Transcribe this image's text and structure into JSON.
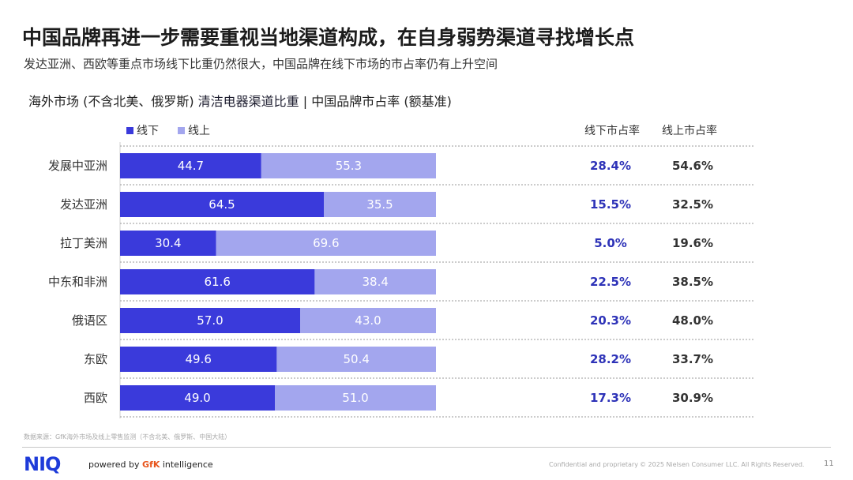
{
  "header": {
    "title": "中国品牌再进一步需要重视当地渠道构成，在自身弱势渠道寻找增长点",
    "subtitle": "发达亚洲、西欧等重点市场线下比重仍然很大，中国品牌在线下市场的市占率仍有上升空间",
    "chart_heading_prefix": "海外市场 (不含北美、俄罗斯) ",
    "chart_heading_highlight": "清洁电器渠道比重",
    "chart_heading_suffix": " | 中国品牌市占率 (额基准)"
  },
  "legend": {
    "offline": "线下",
    "online": "线上"
  },
  "columns": {
    "offline_share": "线下市占率",
    "online_share": "线上市占率"
  },
  "colors": {
    "offline": "#3a3adb",
    "online": "#a3a6ee",
    "share_offline_text": "#2e33b8",
    "share_online_text": "#333333"
  },
  "chart_data": {
    "type": "bar",
    "orientation": "horizontal",
    "stacked": true,
    "categories": [
      "发展中亚洲",
      "发达亚洲",
      "拉丁美洲",
      "中东和非洲",
      "俄语区",
      "东欧",
      "西欧"
    ],
    "series": [
      {
        "name": "线下",
        "values": [
          44.7,
          64.5,
          30.4,
          61.6,
          57.0,
          49.6,
          49.0
        ]
      },
      {
        "name": "线上",
        "values": [
          55.3,
          35.5,
          69.6,
          38.4,
          43.0,
          50.4,
          51.0
        ]
      }
    ],
    "xlim": [
      0,
      100
    ],
    "grid": false,
    "legend_position": "top-left",
    "side_table": {
      "offline_share": [
        "28.4%",
        "15.5%",
        "5.0%",
        "22.5%",
        "20.3%",
        "28.2%",
        "17.3%"
      ],
      "online_share": [
        "54.6%",
        "32.5%",
        "19.6%",
        "38.5%",
        "48.0%",
        "33.7%",
        "30.9%"
      ]
    }
  },
  "footer": {
    "source": "数据来源：GfK海外市场及线上零售监测（不含北美、俄罗斯、中国大陆）",
    "logo": "NIQ",
    "powered_prefix": "powered by ",
    "powered_brand": "GfK",
    "powered_suffix": " intelligence",
    "confidential": "Confidential and proprietary",
    "copyright": "© 2025 Nielsen Consumer LLC. All Rights Reserved.",
    "page_number": "11"
  }
}
